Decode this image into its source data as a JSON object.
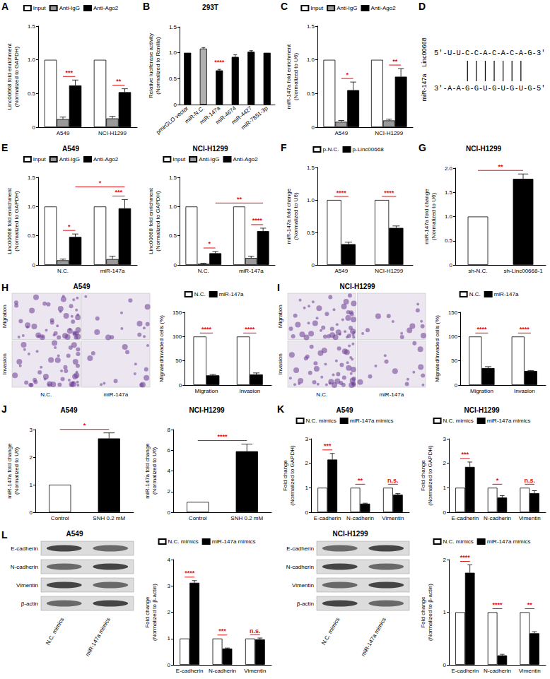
{
  "chart_data": [
    {
      "panel": "A",
      "type": "bar",
      "ylabel": "Linc00668 fold enrichment\n(Normalized to GAPDH)",
      "categories": [
        "A549",
        "NCI-H1299"
      ],
      "series": [
        {
          "name": "Input",
          "color": "#ffffff",
          "values": [
            1,
            1
          ]
        },
        {
          "name": "Anti-IgG",
          "color": "#999999",
          "values": [
            0.12,
            0.13
          ],
          "errors": [
            0.03,
            0.03
          ]
        },
        {
          "name": "Anti-Ago2",
          "color": "#000000",
          "values": [
            0.62,
            0.52
          ],
          "errors": [
            0.08,
            0.05
          ]
        }
      ],
      "ylim": [
        0,
        1.5
      ],
      "yticks": [
        0,
        0.5,
        {
          "value": 1,
          "label": "1.0"
        },
        1.5
      ],
      "legend": "top",
      "significance": [
        {
          "from": [
            "A549",
            "Anti-IgG"
          ],
          "to": [
            "A549",
            "Anti-Ago2"
          ],
          "label": "***"
        },
        {
          "from": [
            "NCI-H1299",
            "Anti-IgG"
          ],
          "to": [
            "NCI-H1299",
            "Anti-Ago2"
          ],
          "label": "**"
        }
      ]
    },
    {
      "panel": "B",
      "type": "bar",
      "title": "293T",
      "ylabel": "Relative luciferase activity\n(Normalized to Renilla)",
      "categories": [
        "pmirGLO vector",
        "miR-N.C.",
        "miR-147a",
        "miR-4674",
        "miR-4427",
        "miR-7851-3p"
      ],
      "values": [
        1,
        1.08,
        0.66,
        0.92,
        1.02,
        1
      ],
      "errors": [
        null,
        0.02,
        0.02,
        0.04,
        0.02,
        null
      ],
      "colors": [
        "#000000",
        "#b0b0b0",
        "#000000",
        "#000000",
        "#000000",
        "#000000"
      ],
      "ylim": [
        0,
        1.5
      ],
      "yticks": [
        0,
        0.5,
        {
          "value": 1,
          "label": "1.0"
        },
        1.5
      ],
      "significance": [
        {
          "at": [
            "miR-147a"
          ],
          "label": "****"
        }
      ]
    },
    {
      "panel": "C",
      "type": "bar",
      "ylabel": "miR-147a fold enrichment\n(Normalized to U6)",
      "categories": [
        "A549",
        "NCI-H1299"
      ],
      "series": [
        {
          "name": "Input",
          "color": "#ffffff",
          "values": [
            1,
            1
          ]
        },
        {
          "name": "Anti-IgG",
          "color": "#999999",
          "values": [
            0.08,
            0.1
          ],
          "errors": [
            0.02,
            0.02
          ]
        },
        {
          "name": "Anti-Ago2",
          "color": "#000000",
          "values": [
            0.55,
            0.75
          ],
          "errors": [
            0.12,
            0.12
          ]
        }
      ],
      "ylim": [
        0,
        1.5
      ],
      "yticks": [
        0,
        0.5,
        {
          "value": 1,
          "label": "1.0"
        },
        1.5
      ],
      "legend": "top",
      "significance": [
        {
          "from": [
            "A549",
            "Anti-IgG"
          ],
          "to": [
            "A549",
            "Anti-Ago2"
          ],
          "label": "*"
        },
        {
          "from": [
            "NCI-H1299",
            "Anti-IgG"
          ],
          "to": [
            "NCI-H1299",
            "Anti-Ago2"
          ],
          "label": "**"
        }
      ]
    },
    {
      "panel": "E",
      "type": "bar",
      "title": "A549",
      "ylabel": "Linc00668 fold enrichment\n(Normalized to GAPDH)",
      "categories": [
        "N.C.",
        "miR-147a"
      ],
      "series": [
        {
          "name": "Input",
          "color": "#ffffff",
          "values": [
            1,
            1
          ]
        },
        {
          "name": "Anti-IgG",
          "color": "#999999",
          "values": [
            0.08,
            0.1
          ],
          "errors": [
            0.02,
            0.05
          ]
        },
        {
          "name": "Anti-Ago2",
          "color": "#000000",
          "values": [
            0.48,
            0.97
          ],
          "errors": [
            0.05,
            0.15
          ]
        }
      ],
      "ylim": [
        0,
        1.5
      ],
      "yticks": [
        0,
        0.5,
        {
          "value": 1,
          "label": "1.0"
        },
        1.5
      ],
      "legend": "top",
      "significance": [
        {
          "from": [
            "N.C.",
            "Anti-IgG"
          ],
          "to": [
            "N.C.",
            "Anti-Ago2"
          ],
          "label": "*"
        },
        {
          "from": [
            "miR-147a",
            "Anti-IgG"
          ],
          "to": [
            "miR-147a",
            "Anti-Ago2"
          ],
          "label": "***"
        },
        {
          "from": [
            "N.C.",
            "Anti-Ago2"
          ],
          "to": [
            "miR-147a",
            "Anti-Ago2"
          ],
          "label": "*"
        }
      ]
    },
    {
      "type": "bar",
      "title": "NCI-H1299",
      "ylabel": "Linc00668 fold enrichment\n(Normalized to GAPDH)",
      "categories": [
        "N.C.",
        "miR-147a"
      ],
      "series": [
        {
          "name": "Input",
          "color": "#ffffff",
          "values": [
            1,
            1
          ]
        },
        {
          "name": "Anti-IgG",
          "color": "#999999",
          "values": [
            0.02,
            0.12
          ],
          "errors": [
            0.01,
            0.03
          ]
        },
        {
          "name": "Anti-Ago2",
          "color": "#000000",
          "values": [
            0.2,
            0.58
          ],
          "errors": [
            0.03,
            0.05
          ]
        }
      ],
      "ylim": [
        0,
        1.5
      ],
      "yticks": [
        0,
        0.5,
        {
          "value": 1,
          "label": "1.0"
        },
        1.5
      ],
      "legend": "top",
      "significance": [
        {
          "from": [
            "N.C.",
            "Anti-IgG"
          ],
          "to": [
            "N.C.",
            "Anti-Ago2"
          ],
          "label": "*"
        },
        {
          "from": [
            "miR-147a",
            "Anti-IgG"
          ],
          "to": [
            "miR-147a",
            "Anti-Ago2"
          ],
          "label": "****"
        },
        {
          "from": [
            "N.C.",
            "Anti-Ago2"
          ],
          "to": [
            "miR-147a",
            "Anti-Ago2"
          ],
          "label": "**"
        }
      ]
    },
    {
      "panel": "F",
      "type": "bar",
      "ylabel": "miR-147a fold change\n(Normalized to U6)",
      "categories": [
        "A549",
        "NCI-H1299"
      ],
      "series": [
        {
          "name": "p-N.C.",
          "color": "#ffffff",
          "values": [
            1,
            1
          ]
        },
        {
          "name": "p-Linc00668",
          "color": "#000000",
          "values": [
            0.32,
            0.57
          ],
          "errors": [
            0.03,
            0.03
          ]
        }
      ],
      "ylim": [
        0,
        1.5
      ],
      "yticks": [
        0,
        0.5,
        {
          "value": 1,
          "label": "1.0"
        },
        1.5
      ],
      "legend": "top",
      "significance": [
        {
          "from": [
            "A549",
            "p-N.C."
          ],
          "to": [
            "A549",
            "p-Linc00668"
          ],
          "label": "****"
        },
        {
          "from": [
            "NCI-H1299",
            "p-N.C."
          ],
          "to": [
            "NCI-H1299",
            "p-Linc00668"
          ],
          "label": "****"
        }
      ]
    },
    {
      "panel": "G",
      "type": "bar",
      "title": "NCI-H1299",
      "ylabel": "miR-147a fold change\n(Normalized to U6)",
      "categories": [
        "sh-N.C.",
        "sh-Linc00668-1"
      ],
      "values": [
        1,
        1.78
      ],
      "errors": [
        null,
        0.1
      ],
      "colors": [
        "#ffffff",
        "#000000"
      ],
      "ylim": [
        0,
        2
      ],
      "yticks": [
        0,
        0.5,
        {
          "value": 1,
          "label": "1.0"
        },
        1.5,
        {
          "value": 2,
          "label": "2.0"
        }
      ],
      "significance": [
        {
          "from": [
            "sh-N.C."
          ],
          "to": [
            "sh-Linc00668-1"
          ],
          "label": "**"
        }
      ]
    },
    {
      "type": "bar",
      "ylabel": "Migrated/Invaded cells (%)",
      "categories": [
        "Migration",
        "Invasion"
      ],
      "series": [
        {
          "name": "N.C.",
          "color": "#ffffff",
          "values": [
            100,
            100
          ]
        },
        {
          "name": "miR-147a",
          "color": "#000000",
          "values": [
            20,
            22
          ],
          "errors": [
            2,
            3
          ]
        }
      ],
      "ylim": [
        0,
        150
      ],
      "yticks": [
        0,
        50,
        100,
        150
      ],
      "legend": "top",
      "significance": [
        {
          "from": [
            "Migration",
            "N.C."
          ],
          "to": [
            "Migration",
            "miR-147a"
          ],
          "label": "****"
        },
        {
          "from": [
            "Invasion",
            "N.C."
          ],
          "to": [
            "Invasion",
            "miR-147a"
          ],
          "label": "****"
        }
      ]
    },
    {
      "type": "bar",
      "ylabel": "Migrated/Invaded cells (%)",
      "categories": [
        "Migration",
        "Invasion"
      ],
      "series": [
        {
          "name": "N.C.",
          "color": "#ffffff",
          "values": [
            100,
            100
          ]
        },
        {
          "name": "miR-147a",
          "color": "#000000",
          "values": [
            35,
            29
          ],
          "errors": [
            3,
            1
          ]
        }
      ],
      "ylim": [
        0,
        150
      ],
      "yticks": [
        0,
        50,
        100,
        150
      ],
      "legend": "top",
      "significance": [
        {
          "from": [
            "Migration",
            "N.C."
          ],
          "to": [
            "Migration",
            "miR-147a"
          ],
          "label": "****"
        },
        {
          "from": [
            "Invasion",
            "N.C."
          ],
          "to": [
            "Invasion",
            "miR-147a"
          ],
          "label": "****"
        }
      ]
    },
    {
      "panel": "J",
      "type": "bar",
      "title": "A549",
      "ylabel": "miR-147a fold change\n(Normalized to U6)",
      "categories": [
        "Control",
        "SNH 0.2 mM"
      ],
      "values": [
        1,
        2.68
      ],
      "errors": [
        null,
        0.2
      ],
      "colors": [
        "#ffffff",
        "#000000"
      ],
      "ylim": [
        0,
        3
      ],
      "yticks": [
        0,
        1,
        2,
        3
      ],
      "significance": [
        {
          "from": [
            "Control"
          ],
          "to": [
            "SNH 0.2 mM"
          ],
          "label": "*"
        }
      ]
    },
    {
      "type": "bar",
      "title": "NCI-H1299",
      "ylabel": "miR-147a fold change\n(Normalized to U6)",
      "categories": [
        "Control",
        "SNH 0.2 mM"
      ],
      "values": [
        1,
        5.9
      ],
      "errors": [
        null,
        0.7
      ],
      "colors": [
        "#ffffff",
        "#000000"
      ],
      "ylim": [
        0,
        8
      ],
      "yticks": [
        0,
        2,
        4,
        6,
        8
      ],
      "significance": [
        {
          "from": [
            "Control"
          ],
          "to": [
            "SNH 0.2 mM"
          ],
          "label": "****"
        }
      ]
    },
    {
      "panel": "K",
      "type": "bar",
      "title": "A549",
      "ylabel": "Fold change\n(Normalized to GAPDH)",
      "categories": [
        "E-cadherin",
        "N-cadherin",
        "Vimentin"
      ],
      "series": [
        {
          "name": "N.C. mimics",
          "color": "#ffffff",
          "values": [
            1,
            1,
            1
          ]
        },
        {
          "name": "miR-147a mimics",
          "color": "#000000",
          "values": [
            2.15,
            0.35,
            0.72
          ],
          "errors": [
            0.25,
            0.02,
            0.04
          ]
        }
      ],
      "ylim": [
        0,
        3
      ],
      "yticks": [
        0,
        1,
        2,
        3
      ],
      "legend": "top",
      "significance": [
        {
          "from": [
            "E-cadherin",
            "N.C. mimics"
          ],
          "to": [
            "E-cadherin",
            "miR-147a mimics"
          ],
          "label": "***"
        },
        {
          "from": [
            "N-cadherin",
            "N.C. mimics"
          ],
          "to": [
            "N-cadherin",
            "miR-147a mimics"
          ],
          "label": "**"
        },
        {
          "from": [
            "Vimentin",
            "N.C. mimics"
          ],
          "to": [
            "Vimentin",
            "miR-147a mimics"
          ],
          "label": "n.s."
        }
      ]
    },
    {
      "type": "bar",
      "title": "NCI-H1299",
      "ylabel": "Fold change\n(Normalized to GAPDH)",
      "categories": [
        "E-cadherin",
        "N-cadherin",
        "Vimentin"
      ],
      "series": [
        {
          "name": "N.C. mimics",
          "color": "#ffffff",
          "values": [
            1,
            1,
            1
          ]
        },
        {
          "name": "miR-147a mimics",
          "color": "#000000",
          "values": [
            1.85,
            0.6,
            0.78
          ],
          "errors": [
            0.2,
            0.08,
            0.1
          ]
        }
      ],
      "ylim": [
        0,
        3
      ],
      "yticks": [
        0,
        1,
        2,
        3
      ],
      "legend": "top",
      "significance": [
        {
          "from": [
            "E-cadherin",
            "N.C. mimics"
          ],
          "to": [
            "E-cadherin",
            "miR-147a mimics"
          ],
          "label": "***"
        },
        {
          "from": [
            "N-cadherin",
            "N.C. mimics"
          ],
          "to": [
            "N-cadherin",
            "miR-147a mimics"
          ],
          "label": "*"
        },
        {
          "from": [
            "Vimentin",
            "N.C. mimics"
          ],
          "to": [
            "Vimentin",
            "miR-147a mimics"
          ],
          "label": "n.s."
        }
      ]
    },
    {
      "type": "bar",
      "ylabel": "Fold change\n(Normalized to β-actin)",
      "categories": [
        "E-cadherin",
        "N-cadherin",
        "Vimentin"
      ],
      "series": [
        {
          "name": "N.C. mimics",
          "color": "#ffffff",
          "values": [
            1,
            1,
            1
          ]
        },
        {
          "name": "miR-147a mimics",
          "color": "#000000",
          "values": [
            3.12,
            0.62,
            0.97
          ],
          "errors": [
            0.08,
            0.02,
            0.05
          ]
        }
      ],
      "ylim": [
        0,
        4
      ],
      "yticks": [
        0,
        1,
        2,
        3,
        4
      ],
      "legend": "top",
      "significance": [
        {
          "from": [
            "E-cadherin",
            "N.C. mimics"
          ],
          "to": [
            "E-cadherin",
            "miR-147a mimics"
          ],
          "label": "****"
        },
        {
          "from": [
            "N-cadherin",
            "N.C. mimics"
          ],
          "to": [
            "N-cadherin",
            "miR-147a mimics"
          ],
          "label": "***"
        },
        {
          "from": [
            "Vimentin",
            "N.C. mimics"
          ],
          "to": [
            "Vimentin",
            "miR-147a mimics"
          ],
          "label": "n.s."
        }
      ]
    },
    {
      "type": "bar",
      "ylabel": "Fold change\n(Normalized to β-actin)",
      "categories": [
        "E-cadherin",
        "N-cadherin",
        "Vimentin"
      ],
      "series": [
        {
          "name": "N.C. mimics",
          "color": "#ffffff",
          "values": [
            1,
            1,
            1
          ]
        },
        {
          "name": "miR-147a mimics",
          "color": "#000000",
          "values": [
            1.75,
            0.18,
            0.6
          ],
          "errors": [
            0.15,
            0.02,
            0.03
          ]
        }
      ],
      "ylim": [
        0,
        2
      ],
      "yticks": [
        0,
        1,
        2
      ],
      "legend": "top",
      "significance": [
        {
          "from": [
            "E-cadherin",
            "N.C. mimics"
          ],
          "to": [
            "E-cadherin",
            "miR-147a mimics"
          ],
          "label": "****"
        },
        {
          "from": [
            "N-cadherin",
            "N.C. mimics"
          ],
          "to": [
            "N-cadherin",
            "miR-147a mimics"
          ],
          "label": "****"
        },
        {
          "from": [
            "Vimentin",
            "N.C. mimics"
          ],
          "to": [
            "Vimentin",
            "miR-147a mimics"
          ],
          "label": "**"
        }
      ]
    }
  ],
  "diagram": {
    "panel": "D",
    "top_label": "Linc00668",
    "top_sequence": "5'-U-U-C-C-A-C-A-C-A-G-3'",
    "bottom_label": "miR-147a",
    "bottom_sequence": "3'-A-A-G-G-U-G-U-G-U-G-5'",
    "paired_positions": [
      3,
      4,
      5,
      6,
      7,
      8,
      9
    ]
  },
  "micrographs": [
    {
      "panel": "H",
      "title": "A549",
      "rows": [
        "Migration",
        "Invasion"
      ],
      "columns": [
        "N.C.",
        "miR-147a"
      ]
    },
    {
      "panel": "I",
      "title": "NCI-H1299",
      "rows": [
        "Migration",
        "Invasion"
      ],
      "columns": [
        "N.C.",
        "miR-147a"
      ]
    }
  ],
  "blots": [
    {
      "panel": "L",
      "title": "A549",
      "bands": [
        "E-cadherin",
        "N-cadherin",
        "Vimentin",
        "β-actin"
      ],
      "lanes": [
        "N.C. mimics",
        "miR-147a mimics"
      ]
    },
    {
      "title": "NCI-H1299",
      "bands": [
        "E-cadherin",
        "N-cadherin",
        "Vimentin",
        "β-actin"
      ],
      "lanes": [
        "N.C. mimics",
        "miR-147a mimics"
      ]
    }
  ]
}
